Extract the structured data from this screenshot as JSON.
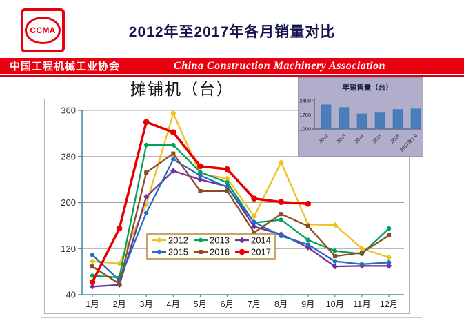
{
  "header": {
    "logo_text": "CCMA",
    "title": "2012年至2017年各月销量对比"
  },
  "banner": {
    "left": "中国工程机械工业协会",
    "right": "China Construction Machinery Association",
    "bg": "#ea0011"
  },
  "colors": {
    "banner_red": "#ea0011",
    "axis_teal": "#4b8da0",
    "gridline_gray": "#a0a0a0",
    "inset_bg": "#b0aecb",
    "inset_bar_blue": "#4a7ebb",
    "legend_border_tan": "#be8a50"
  },
  "chart_data": [
    {
      "type": "line",
      "title": "摊铺机（台）",
      "categories": [
        "1月",
        "2月",
        "3月",
        "4月",
        "5月",
        "6月",
        "7月",
        "8月",
        "9月",
        "10月",
        "11月",
        "12月"
      ],
      "ylim": [
        40,
        360
      ],
      "yticks": [
        40,
        120,
        200,
        280,
        360
      ],
      "grid": true,
      "legend_position": "inside-bottom-center",
      "legend_rows": [
        [
          "2012",
          "2013",
          "2014"
        ],
        [
          "2015",
          "2016",
          "2017"
        ]
      ],
      "series": [
        {
          "name": "2012",
          "color": "#F0C020",
          "marker": "diamond",
          "width": 2.3,
          "values": [
            98,
            94,
            197,
            355,
            250,
            242,
            176,
            270,
            162,
            161,
            120,
            105
          ]
        },
        {
          "name": "2013",
          "color": "#00A15C",
          "marker": "circle",
          "width": 2.3,
          "values": [
            73,
            70,
            300,
            300,
            253,
            235,
            165,
            170,
            135,
            116,
            111,
            155
          ]
        },
        {
          "name": "2014",
          "color": "#7030A0",
          "marker": "diamond",
          "width": 2.3,
          "values": [
            54,
            57,
            210,
            255,
            240,
            228,
            158,
            145,
            122,
            89,
            90,
            90
          ]
        },
        {
          "name": "2015",
          "color": "#1F6FC0",
          "marker": "circle",
          "width": 2.3,
          "values": [
            109,
            65,
            182,
            275,
            247,
            227,
            166,
            142,
            127,
            98,
            93,
            96
          ]
        },
        {
          "name": "2016",
          "color": "#8A4F20",
          "marker": "square",
          "width": 2.3,
          "values": [
            89,
            59,
            252,
            285,
            220,
            220,
            148,
            180,
            159,
            107,
            113,
            143
          ]
        },
        {
          "name": "2017",
          "color": "#E60000",
          "marker": "circle",
          "width": 3.5,
          "values": [
            62,
            155,
            340,
            322,
            263,
            258,
            207,
            201,
            198,
            null,
            null,
            null
          ]
        }
      ]
    },
    {
      "type": "bar",
      "title": "年销售量（台）",
      "categories": [
        "2012",
        "2013",
        "2014",
        "2015",
        "2016",
        "2017年1-9"
      ],
      "values": [
        2200,
        2070,
        1750,
        1800,
        1970,
        2000
      ],
      "ylim": [
        1000,
        2400
      ],
      "yticks": [
        1000,
        1700,
        2400
      ],
      "bar_color": "#4a7ebb",
      "bg": "#b0aecb"
    }
  ]
}
